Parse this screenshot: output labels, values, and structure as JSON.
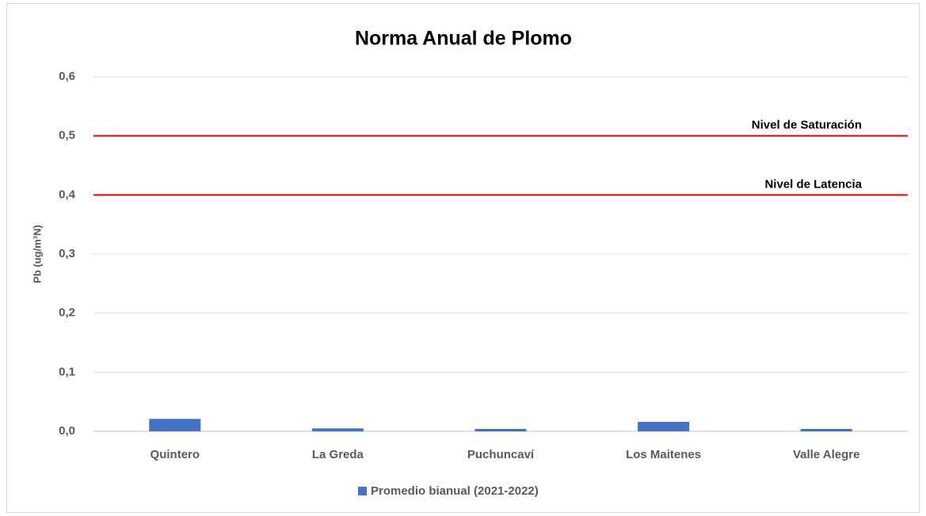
{
  "chart_data": {
    "type": "bar",
    "title": "Norma Anual de Plomo",
    "y_label": "Pb (ug/m³N)",
    "categories": [
      "Quintero",
      "La Greda",
      "Puchuncaví",
      "Los Maitenes",
      "Valle Alegre"
    ],
    "series": [
      {
        "name": "Promedio bianual (2021-2022)",
        "color": "#4472c4",
        "values": [
          0.021,
          0.005,
          0.004,
          0.016,
          0.004
        ]
      }
    ],
    "reference_lines": [
      {
        "label": "Nivel de Saturación",
        "value": 0.5,
        "color": "#e00000"
      },
      {
        "label": "Nivel de Latencia",
        "value": 0.4,
        "color": "#e00000"
      }
    ],
    "ylim": [
      0,
      0.6
    ],
    "yticks": [
      {
        "value": 0,
        "label": "0,0"
      },
      {
        "value": 0.1,
        "label": "0,1"
      },
      {
        "value": 0.2,
        "label": "0,2"
      },
      {
        "value": 0.3,
        "label": "0,3"
      },
      {
        "value": 0.4,
        "label": "0,4"
      },
      {
        "value": 0.5,
        "label": "0,5"
      },
      {
        "value": 0.6,
        "label": "0,6"
      }
    ],
    "grid": true,
    "legend": "bottom"
  }
}
